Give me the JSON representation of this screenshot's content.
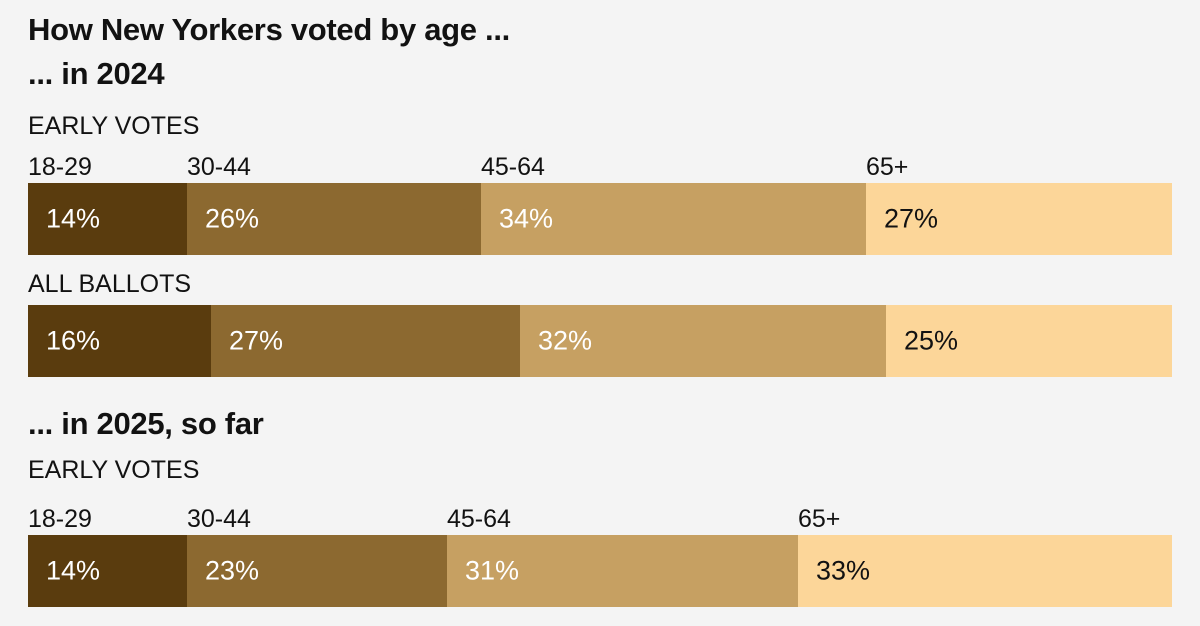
{
  "chart_data": {
    "type": "bar",
    "orientation": "horizontal",
    "stacked": true,
    "title": "How New Yorkers voted by age ...",
    "categories": [
      "18-29",
      "30-44",
      "45-64",
      "65+"
    ],
    "colors": [
      "#5a3c0e",
      "#8c6930",
      "#c6a062",
      "#fcd699"
    ],
    "label_colors": [
      "#ffffff",
      "#ffffff",
      "#ffffff",
      "#121212"
    ],
    "groups": [
      {
        "title": "... in 2024",
        "rows": [
          {
            "name": "EARLY VOTES",
            "show_categories": true,
            "values": [
              14,
              26,
              34,
              27
            ]
          },
          {
            "name": "ALL BALLOTS",
            "show_categories": false,
            "values": [
              16,
              27,
              32,
              25
            ]
          }
        ]
      },
      {
        "title": "... in 2025, so far",
        "rows": [
          {
            "name": "EARLY VOTES",
            "show_categories": true,
            "values": [
              14,
              23,
              31,
              33
            ]
          }
        ]
      }
    ]
  }
}
